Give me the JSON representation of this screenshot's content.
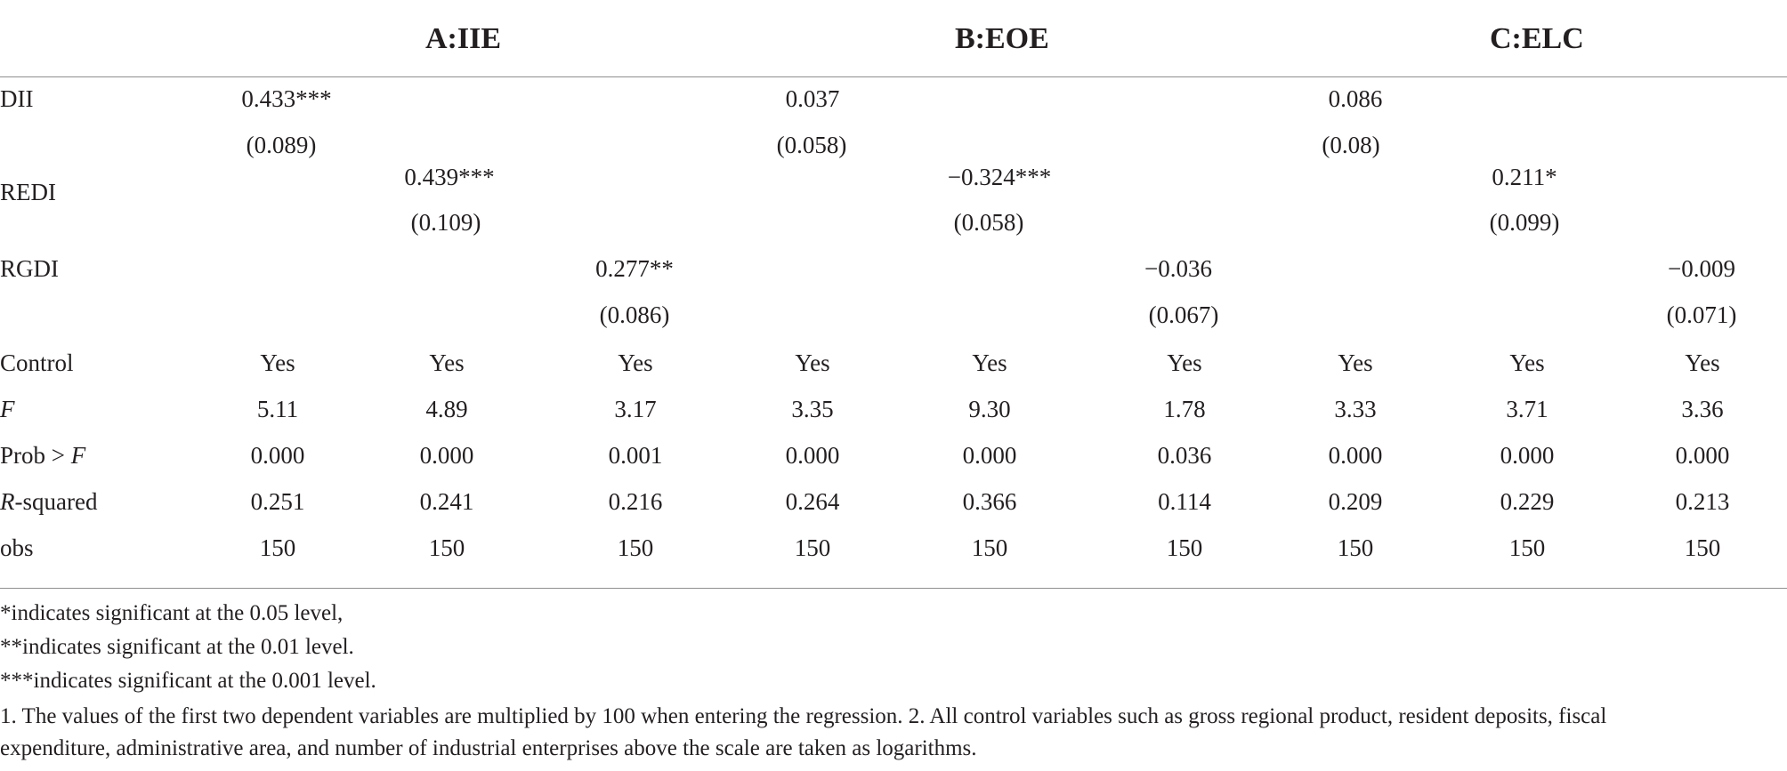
{
  "headers": [
    "A:IIE",
    "B:EOE",
    "C:ELC"
  ],
  "rows": {
    "dii": {
      "label": "DII",
      "coef": [
        "0.433***",
        "0.037",
        "0.086"
      ],
      "se": [
        "(0.089)",
        "(0.058)",
        "(0.08)"
      ]
    },
    "redi": {
      "label": "REDI",
      "coef": [
        "0.439***",
        "−0.324***",
        "0.211*"
      ],
      "se": [
        "(0.109)",
        "(0.058)",
        "(0.099)"
      ]
    },
    "rgdi": {
      "label": "RGDI",
      "coef": [
        "0.277**",
        "−0.036",
        "−0.009"
      ],
      "se": [
        "(0.086)",
        "(0.067)",
        "(0.071)"
      ]
    }
  },
  "stats": [
    {
      "label": "Control",
      "label_italic": "",
      "label_rest": "",
      "values": [
        "Yes",
        "Yes",
        "Yes",
        "Yes",
        "Yes",
        "Yes",
        "Yes",
        "Yes",
        "Yes"
      ]
    },
    {
      "label": "",
      "label_italic": "F",
      "label_rest": "",
      "values": [
        "5.11",
        "4.89",
        "3.17",
        "3.35",
        "9.30",
        "1.78",
        "3.33",
        "3.71",
        "3.36"
      ]
    },
    {
      "label": "Prob > ",
      "label_italic": "F",
      "label_rest": "",
      "values": [
        "0.000",
        "0.000",
        "0.001",
        "0.000",
        "0.000",
        "0.036",
        "0.000",
        "0.000",
        "0.000"
      ]
    },
    {
      "label": "",
      "label_italic": "R",
      "label_rest": "-squared",
      "values": [
        "0.251",
        "0.241",
        "0.216",
        "0.264",
        "0.366",
        "0.114",
        "0.209",
        "0.229",
        "0.213"
      ]
    },
    {
      "label": "obs",
      "label_italic": "",
      "label_rest": "",
      "values": [
        "150",
        "150",
        "150",
        "150",
        "150",
        "150",
        "150",
        "150",
        "150"
      ]
    }
  ],
  "notes": [
    "*indicates significant at the 0.05 level,",
    "**indicates significant at the 0.01 level.",
    "***indicates significant at the 0.001 level.",
    "1. The values of the first two dependent variables are multiplied by 100 when entering the regression. 2. All control variables such as gross regional product, resident deposits, fiscal",
    "expenditure, administrative area, and number of industrial enterprises above the scale are taken as logarithms."
  ]
}
